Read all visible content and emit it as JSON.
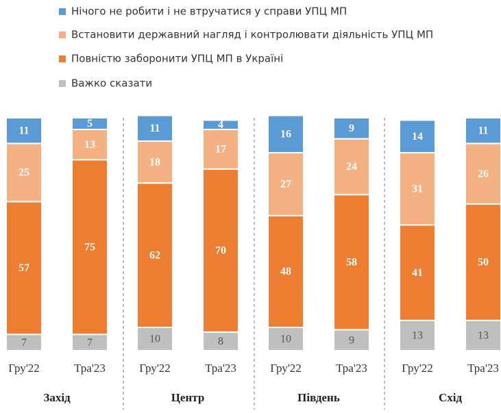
{
  "chart_data": {
    "type": "stacked_bar",
    "categories": [
      "Гру'22",
      "Тра'23",
      "Гру'22",
      "Тра'23",
      "Гру'22",
      "Тра'23",
      "Гру'22",
      "Тра'23"
    ],
    "groups": [
      "Захід",
      "Центр",
      "Південь",
      "Схід"
    ],
    "ylim": [
      0,
      100
    ],
    "series": [
      {
        "name": "Важко сказати",
        "color": "#bfbfbf",
        "values": [
          7,
          7,
          10,
          8,
          10,
          9,
          13,
          13
        ]
      },
      {
        "name": "Повністю заборонити УПЦ МП в Україні",
        "color": "#ed7d31",
        "values": [
          57,
          75,
          62,
          70,
          48,
          58,
          41,
          50
        ]
      },
      {
        "name": "Встановити державний нагляд і контролювати діяльність УПЦ МП",
        "color": "#f4b183",
        "values": [
          25,
          13,
          18,
          17,
          27,
          24,
          31,
          26
        ]
      },
      {
        "name": "Нічого не робити і не втручатися у справи УПЦ МП",
        "color": "#5b9bd5",
        "values": [
          11,
          5,
          11,
          4,
          16,
          9,
          14,
          11
        ]
      }
    ]
  }
}
